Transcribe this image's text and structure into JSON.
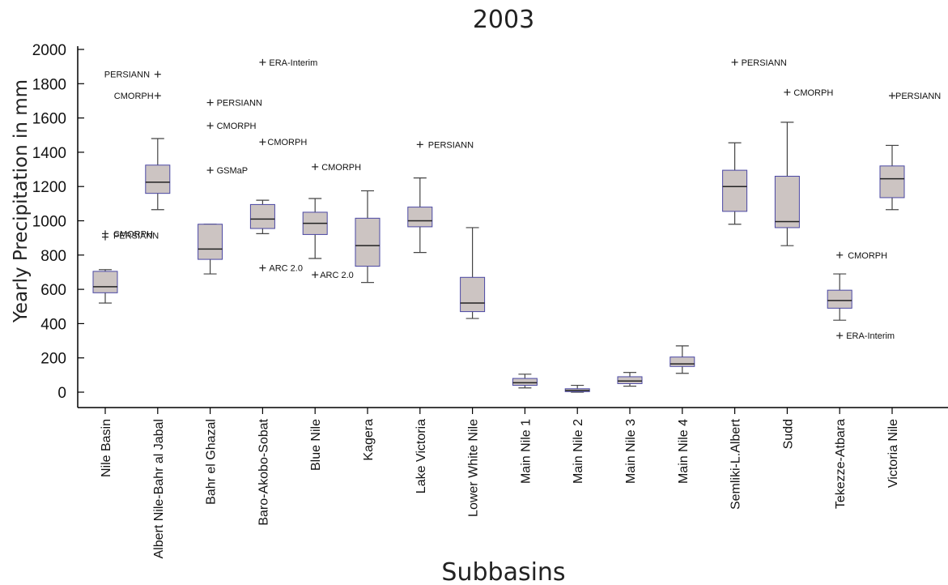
{
  "chart_data": {
    "type": "box",
    "title": "2003",
    "xlabel": "Subbasins",
    "ylabel": "Yearly Precipitation in mm",
    "ylim": [
      -100,
      2000
    ],
    "yticks": [
      0,
      200,
      400,
      600,
      800,
      1000,
      1200,
      1400,
      1600,
      1800,
      2000
    ],
    "grid": false,
    "categories": [
      "Nile Basin",
      "Albert Nile-Bahr al Jabal",
      "Bahr el Ghazal",
      "Baro-Akobo-Sobat",
      "Blue Nile",
      "Kagera",
      "Lake Victoria",
      "Lower White Nile",
      "Main Nile 1",
      "Main Nile 2",
      "Main Nile 3",
      "Main Nile 4",
      "Semliki-L.Albert",
      "Sudd",
      "Tekezze-Atbara",
      "Victoria Nile"
    ],
    "boxes": [
      {
        "whisker_low": 520,
        "q1": 580,
        "median": 615,
        "q3": 705,
        "whisker_high": 715,
        "outliers": [
          {
            "value": 925,
            "label": "CMORPH"
          },
          {
            "value": 905,
            "label": "PERSIANN"
          }
        ]
      },
      {
        "whisker_low": 1065,
        "q1": 1160,
        "median": 1225,
        "q3": 1325,
        "whisker_high": 1480,
        "outliers": [
          {
            "value": 1855,
            "label": "PERSIANN"
          },
          {
            "value": 1730,
            "label": "CMORPH"
          }
        ]
      },
      {
        "whisker_low": 690,
        "q1": 775,
        "median": 835,
        "q3": 980,
        "whisker_high": 980,
        "outliers": [
          {
            "value": 1690,
            "label": "PERSIANN"
          },
          {
            "value": 1555,
            "label": "CMORPH"
          },
          {
            "value": 1295,
            "label": "GSMaP"
          }
        ]
      },
      {
        "whisker_low": 925,
        "q1": 955,
        "median": 1010,
        "q3": 1095,
        "whisker_high": 1120,
        "outliers": [
          {
            "value": 1925,
            "label": "ERA-Interim"
          },
          {
            "value": 1460,
            "label": "CMORPH"
          },
          {
            "value": 725,
            "label": "ARC 2.0"
          }
        ]
      },
      {
        "whisker_low": 780,
        "q1": 920,
        "median": 985,
        "q3": 1050,
        "whisker_high": 1130,
        "outliers": [
          {
            "value": 1315,
            "label": "CMORPH"
          },
          {
            "value": 685,
            "label": "ARC 2.0"
          }
        ]
      },
      {
        "whisker_low": 640,
        "q1": 735,
        "median": 855,
        "q3": 1015,
        "whisker_high": 1175,
        "outliers": []
      },
      {
        "whisker_low": 815,
        "q1": 965,
        "median": 1000,
        "q3": 1080,
        "whisker_high": 1250,
        "outliers": [
          {
            "value": 1445,
            "label": "PERSIANN"
          }
        ]
      },
      {
        "whisker_low": 430,
        "q1": 470,
        "median": 520,
        "q3": 670,
        "whisker_high": 960,
        "outliers": []
      },
      {
        "whisker_low": 25,
        "q1": 40,
        "median": 55,
        "q3": 80,
        "whisker_high": 105,
        "outliers": []
      },
      {
        "whisker_low": 0,
        "q1": 3,
        "median": 10,
        "q3": 20,
        "whisker_high": 40,
        "outliers": []
      },
      {
        "whisker_low": 35,
        "q1": 50,
        "median": 65,
        "q3": 90,
        "whisker_high": 115,
        "outliers": []
      },
      {
        "whisker_low": 110,
        "q1": 150,
        "median": 165,
        "q3": 205,
        "whisker_high": 270,
        "outliers": []
      },
      {
        "whisker_low": 980,
        "q1": 1055,
        "median": 1200,
        "q3": 1295,
        "whisker_high": 1455,
        "outliers": [
          {
            "value": 1925,
            "label": "PERSIANN"
          }
        ]
      },
      {
        "whisker_low": 855,
        "q1": 960,
        "median": 995,
        "q3": 1260,
        "whisker_high": 1575,
        "outliers": [
          {
            "value": 1750,
            "label": "CMORPH"
          }
        ]
      },
      {
        "whisker_low": 420,
        "q1": 490,
        "median": 535,
        "q3": 595,
        "whisker_high": 690,
        "outliers": [
          {
            "value": 800,
            "label": "CMORPH"
          },
          {
            "value": 330,
            "label": "ERA-Interim"
          }
        ]
      },
      {
        "whisker_low": 1065,
        "q1": 1135,
        "median": 1245,
        "q3": 1320,
        "whisker_high": 1440,
        "outliers": [
          {
            "value": 1730,
            "label": "PERSIANN"
          }
        ]
      }
    ],
    "colors": {
      "box_fill": "#ccc4c2",
      "box_edge": "#4a47a3",
      "median": "#222222"
    }
  }
}
